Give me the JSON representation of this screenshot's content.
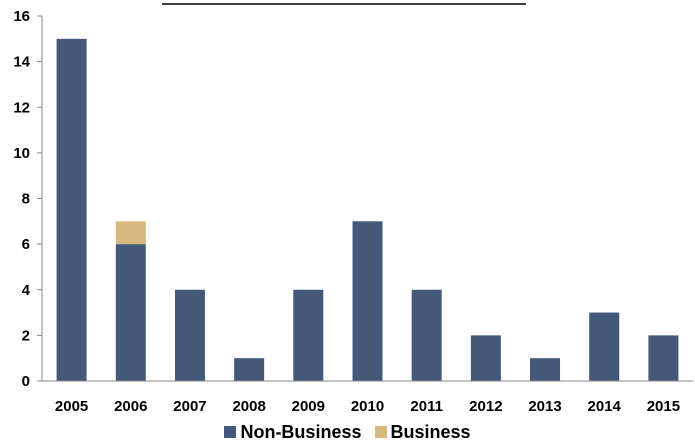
{
  "chart_data": {
    "type": "bar",
    "stacked": true,
    "title": "",
    "xlabel": "",
    "ylabel": "",
    "categories": [
      "2005",
      "2006",
      "2007",
      "2008",
      "2009",
      "2010",
      "2011",
      "2012",
      "2013",
      "2014",
      "2015"
    ],
    "ylim": [
      0,
      16
    ],
    "yticks": [
      0,
      2,
      4,
      6,
      8,
      10,
      12,
      14,
      16
    ],
    "grid": false,
    "legend_position": "bottom",
    "series": [
      {
        "name": "Non-Business",
        "color": "#44587a",
        "values": [
          15,
          6,
          4,
          1,
          4,
          7,
          4,
          2,
          1,
          3,
          2
        ]
      },
      {
        "name": "Business",
        "color": "#d6b97f",
        "values": [
          0,
          1,
          0,
          0,
          0,
          0,
          0,
          0,
          0,
          0,
          0
        ]
      }
    ]
  }
}
